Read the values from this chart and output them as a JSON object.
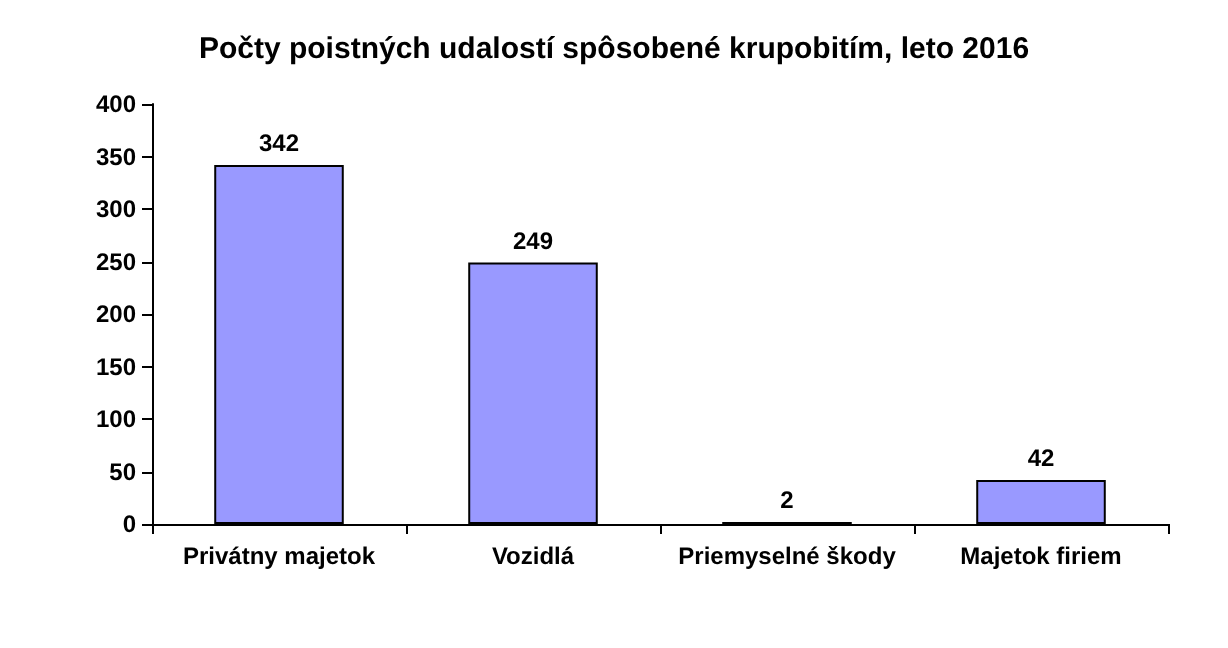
{
  "chart_data": {
    "type": "bar",
    "title": "Počty poistných udalostí spôsobené krupobitím, leto 2016",
    "categories": [
      "Privátny majetok",
      "Vozidlá",
      "Priemyselné škody",
      "Majetok firiem"
    ],
    "values": [
      342,
      249,
      2,
      42
    ],
    "color": "#9999ff",
    "ylim": [
      0,
      400
    ],
    "yticks": [
      0,
      50,
      100,
      150,
      200,
      250,
      300,
      350,
      400
    ],
    "grid": false,
    "data_labels": true
  }
}
